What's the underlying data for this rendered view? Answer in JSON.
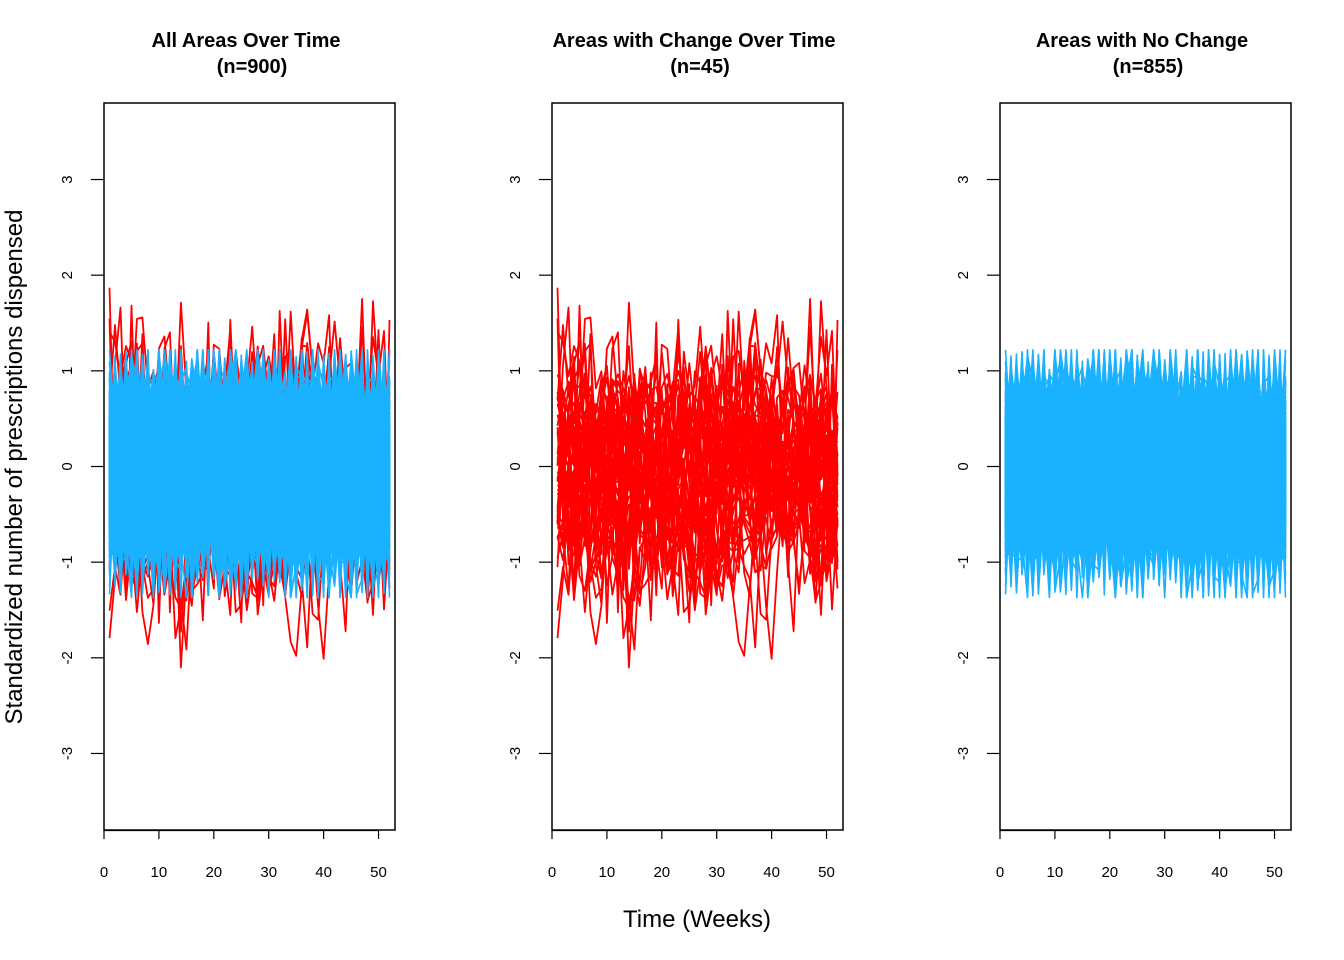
{
  "figure": {
    "xlabel": "Time (Weeks)",
    "ylabel": "Standardized number of prescriptions dispensed",
    "colors": {
      "change": "#ff0000",
      "no_change": "#1ab2ff",
      "axis": "#000000"
    }
  },
  "chart_data": [
    {
      "type": "line",
      "title": "All Areas Over Time",
      "subtitle": "(n=900)",
      "xlim": [
        0,
        53
      ],
      "ylim": [
        -3.8,
        3.8
      ],
      "xticks": [
        0,
        10,
        20,
        30,
        40,
        50
      ],
      "yticks": [
        -3,
        -2,
        -1,
        0,
        1,
        2,
        3
      ],
      "series_groups": [
        {
          "name": "",
          "color": "#ff0000",
          "count": 45,
          "x_range": [
            1,
            52
          ],
          "y_range": [
            -2.27,
            2.37
          ]
        },
        {
          "name": "",
          "color": "#1ab2ff",
          "count": 855,
          "x_range": [
            1,
            52
          ],
          "y_range": [
            -1.37,
            1.22
          ]
        }
      ],
      "draw_order": [
        "change",
        "no_change"
      ]
    },
    {
      "type": "line",
      "title": "Areas with Change Over Time",
      "subtitle": "(n=45)",
      "xlim": [
        0,
        53
      ],
      "ylim": [
        -3.8,
        3.8
      ],
      "xticks": [
        0,
        10,
        20,
        30,
        40,
        50
      ],
      "yticks": [
        -3,
        -2,
        -1,
        0,
        1,
        2,
        3
      ],
      "series_groups": [
        {
          "name": "",
          "color": "#ff0000",
          "count": 45,
          "x_range": [
            1,
            52
          ],
          "y_range": [
            -2.27,
            2.37
          ]
        }
      ],
      "draw_order": [
        "change"
      ]
    },
    {
      "type": "line",
      "title": "Areas with No Change",
      "subtitle": "(n=855)",
      "xlim": [
        0,
        53
      ],
      "ylim": [
        -3.8,
        3.8
      ],
      "xticks": [
        0,
        10,
        20,
        30,
        40,
        50
      ],
      "yticks": [
        -3,
        -2,
        -1,
        0,
        1,
        2,
        3
      ],
      "series_groups": [
        {
          "name": "",
          "color": "#1ab2ff",
          "count": 855,
          "x_range": [
            1,
            52
          ],
          "y_range": [
            -1.37,
            1.22
          ]
        }
      ],
      "draw_order": [
        "no_change"
      ]
    }
  ]
}
